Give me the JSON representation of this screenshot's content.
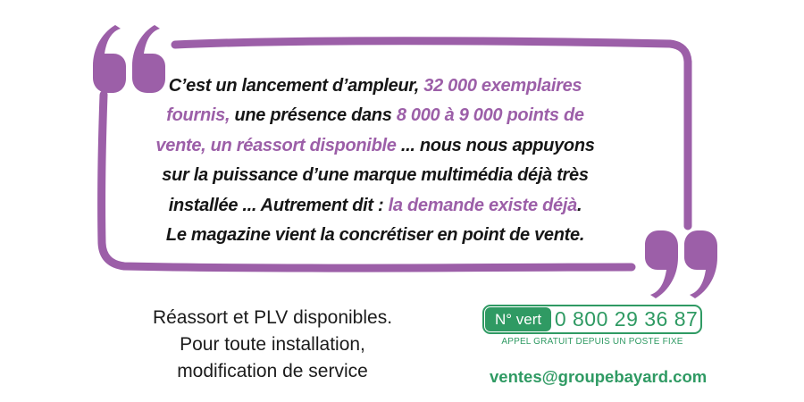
{
  "colors": {
    "purple": "#9c5fa8",
    "green": "#2f9a63",
    "ink": "#161616"
  },
  "quote": {
    "open_mark_icon": "open-quote-icon",
    "close_mark_icon": "close-quote-icon",
    "lines": [
      [
        {
          "t": "C’est un lancement d’ampleur, ",
          "c": "black"
        },
        {
          "t": "32 000 exemplaires",
          "c": "purple"
        }
      ],
      [
        {
          "t": "fournis, ",
          "c": "purple"
        },
        {
          "t": "une présence dans ",
          "c": "black"
        },
        {
          "t": "8 000 à 9 000 points de",
          "c": "purple"
        }
      ],
      [
        {
          "t": "vente, un réassort disponible ",
          "c": "purple"
        },
        {
          "t": "... nous nous appuyons",
          "c": "black"
        }
      ],
      [
        {
          "t": "sur la puissance d’une marque multimédia déjà très",
          "c": "black"
        }
      ],
      [
        {
          "t": "installée ... Autrement dit : ",
          "c": "black"
        },
        {
          "t": "la demande existe déjà",
          "c": "purple"
        },
        {
          "t": ".",
          "c": "black"
        }
      ],
      [
        {
          "t": "Le magazine vient la concrétiser en point de vente.",
          "c": "black"
        }
      ]
    ]
  },
  "info": {
    "lines": [
      "Réassort et PLV disponibles.",
      "Pour toute installation,",
      "modification de service"
    ]
  },
  "contact": {
    "nvert_label": "N° vert",
    "phone": "0 800 29 36 87",
    "subtext": "APPEL GRATUIT DEPUIS UN POSTE FIXE",
    "email": "ventes@groupebayard.com"
  }
}
